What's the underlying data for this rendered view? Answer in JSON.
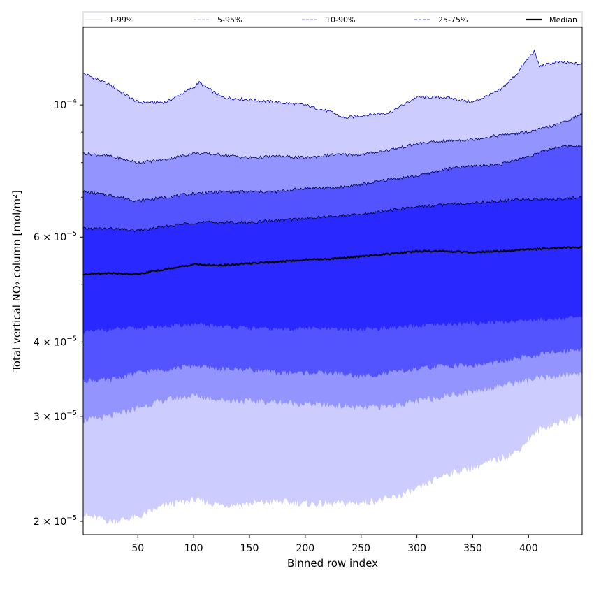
{
  "chart_data": {
    "type": "area",
    "xlabel": "Binned row index",
    "ylabel": "Total vertical NO₂ column [mol/m²]",
    "yscale": "log",
    "xlim": [
      1,
      448
    ],
    "ylim": [
      1.9e-05,
      0.000135
    ],
    "x_ticks": [
      50,
      100,
      150,
      200,
      250,
      300,
      350,
      400
    ],
    "y_ticks": [
      {
        "value": 2e-05,
        "mantissa": "2",
        "exp": "-5"
      },
      {
        "value": 3e-05,
        "mantissa": "3",
        "exp": "-5"
      },
      {
        "value": 4e-05,
        "mantissa": "4",
        "exp": "-5"
      },
      {
        "value": 6e-05,
        "mantissa": "6",
        "exp": "-5"
      },
      {
        "value": 0.0001,
        "mantissa": "",
        "exp": "-4"
      }
    ],
    "legend": {
      "placement": "top",
      "entries": [
        {
          "label": "1-99%",
          "color": "#dcdcf5",
          "style": "solid"
        },
        {
          "label": "5-95%",
          "color": "#b4b4f0",
          "style": "dashed"
        },
        {
          "label": "10-90%",
          "color": "#8c8cf5",
          "style": "dashed"
        },
        {
          "label": "25-75%",
          "color": "#5a5af0",
          "style": "dashed"
        },
        {
          "label": "Median",
          "color": "#000000",
          "style": "solid"
        }
      ]
    },
    "bands": [
      {
        "name": "1-99%",
        "color": "#ccccff",
        "upper_x": [
          1,
          25,
          50,
          75,
          100,
          105,
          125,
          150,
          175,
          200,
          225,
          235,
          250,
          275,
          300,
          325,
          350,
          375,
          390,
          400,
          405,
          410,
          425,
          448
        ],
        "upper_y": [
          0.000113,
          0.000108,
          0.000101,
          0.000101,
          0.000107,
          0.000109,
          0.000103,
          0.000102,
          0.000101,
          0.0001,
          9.7e-05,
          9.5e-05,
          9.6e-05,
          9.7e-05,
          0.000103,
          0.000103,
          0.000101,
          0.000106,
          0.000113,
          0.00012,
          0.000123,
          0.000116,
          0.000118,
          0.000117
        ],
        "lower_x": [
          1,
          25,
          50,
          75,
          100,
          125,
          150,
          175,
          200,
          225,
          250,
          275,
          300,
          325,
          350,
          375,
          390,
          400,
          410,
          425,
          448
        ],
        "lower_y": [
          2.05e-05,
          2e-05,
          2.03e-05,
          2.13e-05,
          2.17e-05,
          2.13e-05,
          2.14e-05,
          2.16e-05,
          2.14e-05,
          2.14e-05,
          2.15e-05,
          2.18e-05,
          2.26e-05,
          2.4e-05,
          2.46e-05,
          2.55e-05,
          2.62e-05,
          2.75e-05,
          2.85e-05,
          2.92e-05,
          3e-05
        ]
      },
      {
        "name": "5-95%",
        "color": "#9494ff",
        "upper_x": [
          1,
          25,
          50,
          75,
          100,
          125,
          150,
          175,
          200,
          225,
          250,
          275,
          300,
          325,
          350,
          375,
          400,
          425,
          448
        ],
        "upper_y": [
          8.3e-05,
          8.2e-05,
          8e-05,
          8.1e-05,
          8.3e-05,
          8.25e-05,
          8.15e-05,
          8.2e-05,
          8.15e-05,
          8.25e-05,
          8.25e-05,
          8.4e-05,
          8.6e-05,
          8.7e-05,
          8.75e-05,
          8.9e-05,
          9e-05,
          9.25e-05,
          9.65e-05
        ],
        "lower_x": [
          1,
          25,
          50,
          75,
          100,
          125,
          150,
          175,
          200,
          225,
          250,
          275,
          300,
          325,
          350,
          375,
          400,
          425,
          448
        ],
        "lower_y": [
          2.95e-05,
          3e-05,
          3.1e-05,
          3.2e-05,
          3.25e-05,
          3.2e-05,
          3.18e-05,
          3.17e-05,
          3.15e-05,
          3.13e-05,
          3.1e-05,
          3.12e-05,
          3.18e-05,
          3.25e-05,
          3.3e-05,
          3.38e-05,
          3.45e-05,
          3.5e-05,
          3.55e-05
        ]
      },
      {
        "name": "10-90%",
        "color": "#5454ff",
        "upper_x": [
          1,
          25,
          50,
          75,
          100,
          125,
          150,
          175,
          200,
          225,
          250,
          275,
          300,
          325,
          350,
          375,
          400,
          425,
          448
        ],
        "upper_y": [
          7.15e-05,
          7.05e-05,
          6.9e-05,
          7e-05,
          7.1e-05,
          7.15e-05,
          7.15e-05,
          7.15e-05,
          7.25e-05,
          7.25e-05,
          7.35e-05,
          7.5e-05,
          7.6e-05,
          7.8e-05,
          7.9e-05,
          7.95e-05,
          8.2e-05,
          8.5e-05,
          8.55e-05
        ],
        "lower_x": [
          1,
          25,
          50,
          75,
          100,
          125,
          150,
          175,
          200,
          225,
          250,
          275,
          300,
          325,
          350,
          375,
          400,
          425,
          448
        ],
        "lower_y": [
          3.45e-05,
          3.45e-05,
          3.55e-05,
          3.6e-05,
          3.65e-05,
          3.6e-05,
          3.6e-05,
          3.55e-05,
          3.55e-05,
          3.55e-05,
          3.5e-05,
          3.55e-05,
          3.6e-05,
          3.65e-05,
          3.65e-05,
          3.7e-05,
          3.78e-05,
          3.85e-05,
          3.9e-05
        ]
      },
      {
        "name": "25-75%",
        "color": "#2828ff",
        "upper_x": [
          1,
          25,
          50,
          75,
          100,
          125,
          150,
          175,
          200,
          225,
          250,
          275,
          300,
          325,
          350,
          375,
          400,
          425,
          448
        ],
        "upper_y": [
          6.2e-05,
          6.2e-05,
          6.15e-05,
          6.25e-05,
          6.35e-05,
          6.35e-05,
          6.35e-05,
          6.4e-05,
          6.45e-05,
          6.5e-05,
          6.55e-05,
          6.65e-05,
          6.75e-05,
          6.8e-05,
          6.85e-05,
          6.9e-05,
          6.95e-05,
          6.95e-05,
          7e-05
        ],
        "lower_x": [
          1,
          25,
          50,
          75,
          100,
          125,
          150,
          175,
          200,
          225,
          250,
          275,
          300,
          325,
          350,
          375,
          400,
          425,
          448
        ],
        "lower_y": [
          4.15e-05,
          4.2e-05,
          4.22e-05,
          4.25e-05,
          4.28e-05,
          4.25e-05,
          4.22e-05,
          4.2e-05,
          4.22e-05,
          4.2e-05,
          4.2e-05,
          4.22e-05,
          4.25e-05,
          4.28e-05,
          4.3e-05,
          4.32e-05,
          4.35e-05,
          4.38e-05,
          4.4e-05
        ]
      }
    ],
    "series": [
      {
        "name": "Median",
        "color": "#000000",
        "x": [
          1,
          25,
          50,
          75,
          100,
          125,
          150,
          175,
          200,
          225,
          250,
          275,
          300,
          325,
          350,
          375,
          400,
          425,
          448
        ],
        "values": [
          5.2e-05,
          5.22e-05,
          5.2e-05,
          5.3e-05,
          5.4e-05,
          5.38e-05,
          5.42e-05,
          5.45e-05,
          5.5e-05,
          5.52e-05,
          5.57e-05,
          5.62e-05,
          5.68e-05,
          5.68e-05,
          5.66e-05,
          5.68e-05,
          5.72e-05,
          5.75e-05,
          5.77e-05
        ]
      }
    ]
  }
}
